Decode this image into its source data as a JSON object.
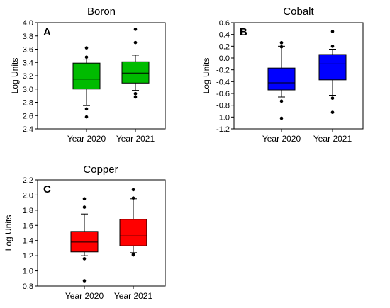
{
  "chart_data": [
    {
      "type": "box",
      "panel": "A",
      "title": "Boron",
      "ylabel": "Log Units",
      "ylim": [
        2.4,
        4.0
      ],
      "yticks": [
        "2.4",
        "2.6",
        "2.8",
        "3.0",
        "3.2",
        "3.4",
        "3.6",
        "3.8",
        "4.0"
      ],
      "categories": [
        "Year 2020",
        "Year 2021"
      ],
      "color": "#00bb00",
      "boxes": [
        {
          "q1": 3.0,
          "median": 3.15,
          "q3": 3.39,
          "whisker_low": 2.75,
          "whisker_high": 3.45,
          "outliers": [
            2.58,
            2.7,
            3.48,
            3.62
          ]
        },
        {
          "q1": 3.09,
          "median": 3.24,
          "q3": 3.41,
          "whisker_low": 2.98,
          "whisker_high": 3.51,
          "outliers": [
            2.88,
            2.93,
            3.7,
            3.9
          ]
        }
      ]
    },
    {
      "type": "box",
      "panel": "B",
      "title": "Cobalt",
      "ylabel": "Log Units",
      "ylim": [
        -1.2,
        0.6
      ],
      "yticks": [
        "-1.2",
        "-1.0",
        "-0.8",
        "-0.6",
        "-0.4",
        "-0.2",
        "0.0",
        "0.2",
        "0.4",
        "0.6"
      ],
      "categories": [
        "Year 2020",
        "Year 2021"
      ],
      "color": "#0000ff",
      "boxes": [
        {
          "q1": -0.54,
          "median": -0.42,
          "q3": -0.17,
          "whisker_low": -0.66,
          "whisker_high": 0.2,
          "outliers": [
            -1.02,
            -0.73,
            0.19,
            0.26
          ]
        },
        {
          "q1": -0.37,
          "median": -0.1,
          "q3": 0.06,
          "whisker_low": -0.63,
          "whisker_high": 0.15,
          "outliers": [
            -0.92,
            -0.68,
            0.2,
            0.45
          ]
        }
      ]
    },
    {
      "type": "box",
      "panel": "C",
      "title": "Copper",
      "ylabel": "Log Units",
      "ylim": [
        0.8,
        2.2
      ],
      "yticks": [
        "0.8",
        "1.0",
        "1.2",
        "1.4",
        "1.6",
        "1.8",
        "2.0",
        "2.2"
      ],
      "categories": [
        "Year 2020",
        "Year 2021"
      ],
      "color": "#ff0000",
      "boxes": [
        {
          "q1": 1.25,
          "median": 1.38,
          "q3": 1.52,
          "whisker_low": 1.2,
          "whisker_high": 1.75,
          "outliers": [
            0.87,
            1.16,
            1.84,
            1.95
          ]
        },
        {
          "q1": 1.33,
          "median": 1.46,
          "q3": 1.68,
          "whisker_low": 1.24,
          "whisker_high": 1.95,
          "outliers": [
            1.21,
            1.22,
            1.96,
            2.07
          ]
        }
      ]
    }
  ]
}
